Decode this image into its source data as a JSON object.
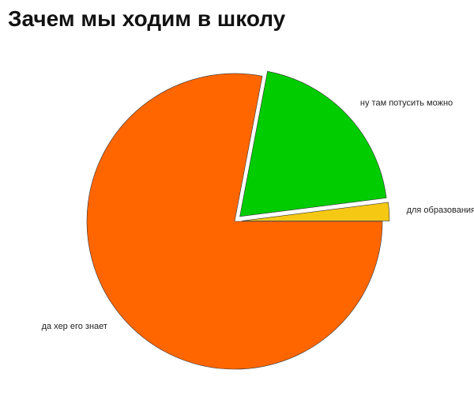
{
  "chart_data": {
    "type": "pie",
    "title": "Зачем мы ходим в школу",
    "categories": [
      "для образования",
      "ну там потусить можно",
      "да хер его знает"
    ],
    "values": [
      2,
      20,
      78
    ],
    "colors": [
      "#f5c814",
      "#00cc00",
      "#ff6600"
    ],
    "explode": [
      true,
      true,
      false
    ]
  }
}
